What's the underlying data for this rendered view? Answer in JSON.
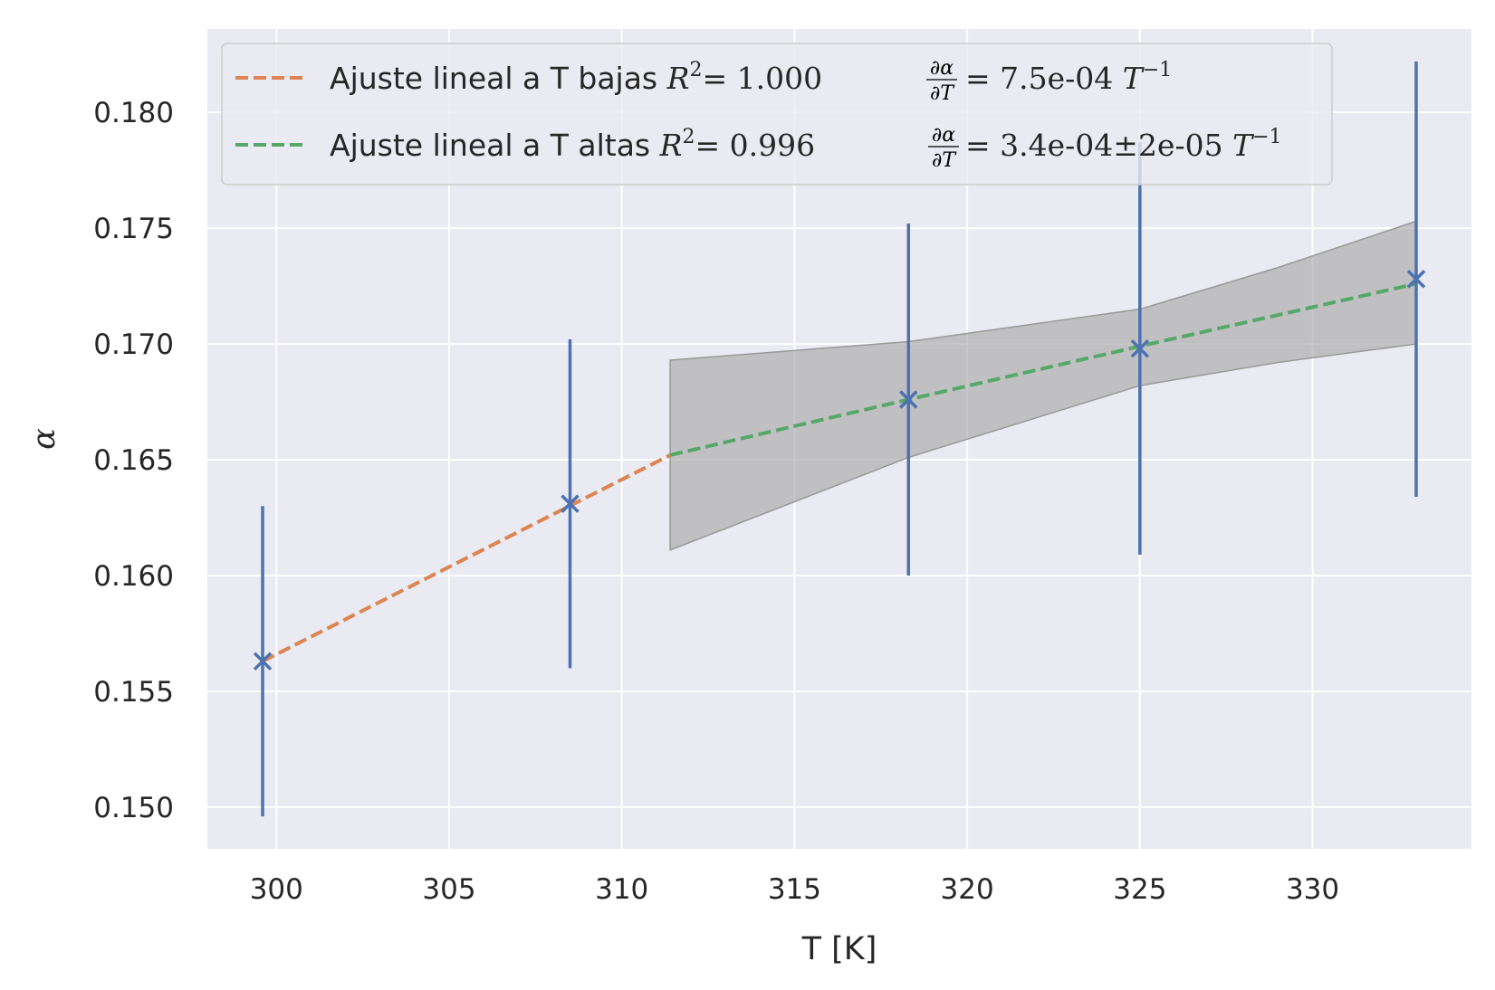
{
  "chart_data": {
    "type": "line",
    "xlabel": "T [K]",
    "ylabel": "α",
    "xlim": [
      298.0,
      334.6
    ],
    "ylim": [
      0.1482,
      0.1836
    ],
    "xticks": [
      300,
      305,
      310,
      315,
      320,
      325,
      330
    ],
    "xtick_labels": [
      "300",
      "305",
      "310",
      "315",
      "320",
      "325",
      "330"
    ],
    "yticks": [
      0.15,
      0.155,
      0.16,
      0.165,
      0.17,
      0.175,
      0.18
    ],
    "ytick_labels": [
      "0.150",
      "0.155",
      "0.160",
      "0.165",
      "0.170",
      "0.175",
      "0.180"
    ],
    "grid": true,
    "legend_position": "upper-left",
    "measurements": {
      "marker": "x",
      "x": [
        299.6,
        308.5,
        318.3,
        325.0,
        333.0
      ],
      "y": [
        0.1563,
        0.1631,
        0.1676,
        0.1698,
        0.1728
      ],
      "yerr": [
        0.0067,
        0.0071,
        0.0076,
        0.0089,
        0.0094
      ]
    },
    "series": [
      {
        "name": "Ajuste lineal a T bajas",
        "style": "dashed",
        "x": [
          299.6,
          311.4
        ],
        "y": [
          0.1563,
          0.1652
        ],
        "legend": {
          "prefix": "Ajuste lineal a T bajas ",
          "r2_symbol": "R",
          "r2_exp": "2",
          "r2_value": "= 1.000",
          "deriv_num": "∂α",
          "deriv_den": "∂T",
          "deriv_value": "= 7.5e-04 ",
          "unit": "T",
          "unit_exp": "−1"
        }
      },
      {
        "name": "Ajuste lineal a T altas",
        "style": "dashed",
        "x": [
          311.4,
          318.3,
          325.0,
          333.0
        ],
        "y": [
          0.1652,
          0.1676,
          0.1699,
          0.1726
        ],
        "band": {
          "x": [
            311.4,
            318.3,
            325.0,
            329.0,
            333.0
          ],
          "lower": [
            0.1611,
            0.1651,
            0.1682,
            0.1692,
            0.17
          ],
          "upper": [
            0.1693,
            0.1701,
            0.1715,
            0.1733,
            0.1753
          ]
        },
        "legend": {
          "prefix": "Ajuste lineal a T altas  ",
          "r2_symbol": "R",
          "r2_exp": "2",
          "r2_value": "= 0.996",
          "deriv_num": "∂α",
          "deriv_den": "∂T",
          "deriv_value": "= 3.4e-04±2e-05 ",
          "unit": "T",
          "unit_exp": "−1"
        }
      }
    ],
    "colors": {
      "background": "#eaeaf2",
      "grid": "#ffffff",
      "points": "#4c72b0",
      "low_fit": "#dd8452",
      "high_fit": "#55a868",
      "band": "#a9a9a9"
    }
  }
}
